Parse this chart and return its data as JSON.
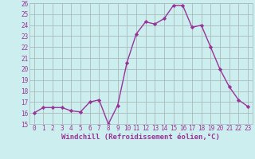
{
  "x": [
    0,
    1,
    2,
    3,
    4,
    5,
    6,
    7,
    8,
    9,
    10,
    11,
    12,
    13,
    14,
    15,
    16,
    17,
    18,
    19,
    20,
    21,
    22,
    23
  ],
  "y": [
    16.0,
    16.5,
    16.5,
    16.5,
    16.2,
    16.1,
    17.0,
    17.2,
    15.0,
    16.7,
    20.6,
    23.2,
    24.3,
    24.1,
    24.6,
    25.8,
    25.8,
    23.8,
    24.0,
    22.0,
    20.0,
    18.4,
    17.2,
    16.6
  ],
  "line_color": "#993399",
  "marker": "D",
  "marker_size": 2.2,
  "bg_color": "#cceeee",
  "grid_color": "#aabbbb",
  "xlabel": "Windchill (Refroidissement éolien,°C)",
  "ylim": [
    15,
    26
  ],
  "xlim_min": -0.5,
  "xlim_max": 23.5,
  "yticks": [
    15,
    16,
    17,
    18,
    19,
    20,
    21,
    22,
    23,
    24,
    25,
    26
  ],
  "xticks": [
    0,
    1,
    2,
    3,
    4,
    5,
    6,
    7,
    8,
    9,
    10,
    11,
    12,
    13,
    14,
    15,
    16,
    17,
    18,
    19,
    20,
    21,
    22,
    23
  ],
  "axis_label_color": "#993399",
  "tick_color": "#993399",
  "line_width": 1.0,
  "tick_fontsize": 5.5,
  "xlabel_fontsize": 6.5
}
